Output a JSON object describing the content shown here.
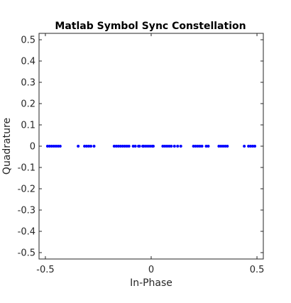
{
  "chart_data": {
    "type": "scatter",
    "title": "Matlab Symbol Sync Constellation",
    "xlabel": "In-Phase",
    "ylabel": "Quadrature",
    "xlim": [
      -0.53,
      0.53
    ],
    "ylim": [
      -0.53,
      0.53
    ],
    "xticks": [
      -0.5,
      0,
      0.5
    ],
    "xtick_labels": [
      "-0.5",
      "0",
      "0.5"
    ],
    "yticks": [
      0.5,
      0.4,
      0.3,
      0.2,
      0.1,
      0,
      -0.1,
      -0.2,
      -0.3,
      -0.4,
      -0.5
    ],
    "ytick_labels": [
      "0.5",
      "0.4",
      "0.3",
      "0.2",
      "0.1",
      "0",
      "-0.1",
      "-0.2",
      "-0.3",
      "-0.4",
      "-0.5"
    ],
    "grid": false,
    "marker_color": "#0000ff",
    "series": [
      {
        "x": [
          -0.49,
          -0.48,
          -0.47,
          -0.46,
          -0.45,
          -0.44,
          -0.43,
          -0.345,
          -0.315,
          -0.305,
          -0.295,
          -0.285,
          -0.27,
          -0.175,
          -0.165,
          -0.155,
          -0.145,
          -0.135,
          -0.125,
          -0.115,
          -0.105,
          -0.085,
          -0.075,
          -0.06,
          -0.055,
          -0.04,
          -0.025,
          -0.015,
          -0.005,
          0.005,
          0.01,
          -0.035,
          0.055,
          0.065,
          0.075,
          0.085,
          0.095,
          0.11,
          0.125,
          0.14,
          0.2,
          0.21,
          0.22,
          0.23,
          0.24,
          0.26,
          0.27,
          0.32,
          0.33,
          0.34,
          0.35,
          0.36,
          0.44,
          0.46,
          0.47,
          0.48,
          0.49
        ],
        "y": [
          0,
          0,
          0,
          0,
          0,
          0,
          0,
          0,
          0,
          0,
          0,
          0,
          0,
          0,
          0,
          0,
          0,
          0,
          0,
          0,
          0,
          0,
          0,
          0,
          0,
          0,
          0,
          0,
          0,
          0,
          0,
          0,
          0,
          0,
          0,
          0,
          0,
          0,
          0,
          0,
          0,
          0,
          0,
          0,
          0,
          0,
          0,
          0,
          0,
          0,
          0,
          0,
          0,
          0,
          0,
          0,
          0
        ]
      }
    ]
  }
}
